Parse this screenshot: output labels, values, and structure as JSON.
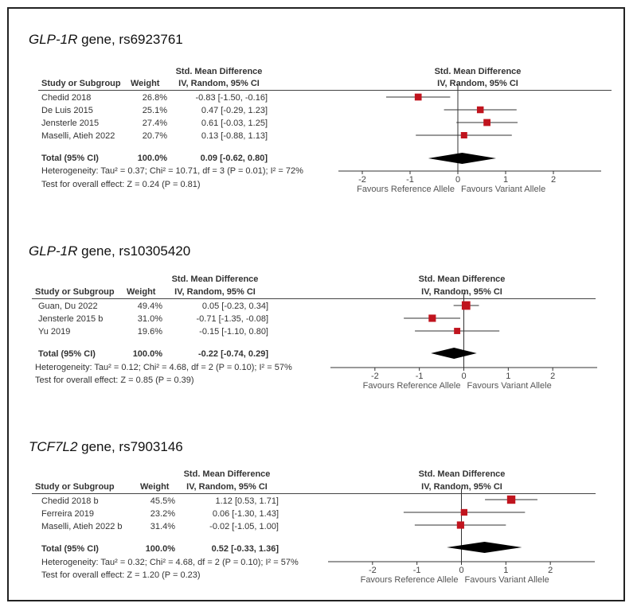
{
  "chart_data": [
    {
      "type": "forest",
      "title_gene": "GLP-1R",
      "title_rest": " gene, rs6923761",
      "header": {
        "group_left": "Std. Mean Difference",
        "group_right": "Std. Mean Difference",
        "study": "Study or Subgroup",
        "weight": "Weight",
        "method_left": "IV, Random, 95% CI",
        "method_right": "IV, Random, 95% CI"
      },
      "studies": [
        {
          "name": "Chedid 2018",
          "weight": "26.8%",
          "ci_text": "-0.83 [-1.50, -0.16]",
          "est": -0.83,
          "lo": -1.5,
          "hi": -0.16,
          "w": 26.8
        },
        {
          "name": "De Luis 2015",
          "weight": "25.1%",
          "ci_text": "0.47 [-0.29, 1.23]",
          "est": 0.47,
          "lo": -0.29,
          "hi": 1.23,
          "w": 25.1
        },
        {
          "name": "Jensterle 2015",
          "weight": "27.4%",
          "ci_text": "0.61 [-0.03, 1.25]",
          "est": 0.61,
          "lo": -0.03,
          "hi": 1.25,
          "w": 27.4
        },
        {
          "name": "Maselli, Atieh 2022",
          "weight": "20.7%",
          "ci_text": "0.13 [-0.88, 1.13]",
          "est": 0.13,
          "lo": -0.88,
          "hi": 1.13,
          "w": 20.7
        }
      ],
      "total": {
        "label": "Total (95% CI)",
        "weight": "100.0%",
        "ci_text": "0.09 [-0.62, 0.80]",
        "est": 0.09,
        "lo": -0.62,
        "hi": 0.8
      },
      "heterogeneity": "Heterogeneity: Tau² = 0.37; Chi² = 10.71, df = 3 (P = 0.01); I² = 72%",
      "overall_effect": "Test for overall effect: Z = 0.24 (P = 0.81)",
      "x_ticks": [
        -2,
        -1,
        0,
        1,
        2
      ],
      "x_tick_labels": [
        "-2",
        "-1",
        "0",
        "1",
        "2"
      ],
      "xlim": [
        -2.5,
        3.0
      ],
      "favours_left": "Favours Reference Allele",
      "favours_right": "Favours Variant Allele",
      "marker_color": "#c0141e"
    },
    {
      "type": "forest",
      "title_gene": "GLP-1R",
      "title_rest": " gene, rs10305420",
      "header": {
        "group_left": "Std. Mean Difference",
        "group_right": "Std. Mean Difference",
        "study": "Study or Subgroup",
        "weight": "Weight",
        "method_left": "IV, Random, 95% CI",
        "method_right": "IV, Random, 95% CI"
      },
      "studies": [
        {
          "name": "Guan, Du 2022",
          "weight": "49.4%",
          "ci_text": "0.05 [-0.23, 0.34]",
          "est": 0.05,
          "lo": -0.23,
          "hi": 0.34,
          "w": 49.4
        },
        {
          "name": "Jensterle 2015 b",
          "weight": "31.0%",
          "ci_text": "-0.71 [-1.35, -0.08]",
          "est": -0.71,
          "lo": -1.35,
          "hi": -0.08,
          "w": 31.0
        },
        {
          "name": "Yu 2019",
          "weight": "19.6%",
          "ci_text": "-0.15 [-1.10, 0.80]",
          "est": -0.15,
          "lo": -1.1,
          "hi": 0.8,
          "w": 19.6
        }
      ],
      "total": {
        "label": "Total (95% CI)",
        "weight": "100.0%",
        "ci_text": "-0.22 [-0.74, 0.29]",
        "est": -0.22,
        "lo": -0.74,
        "hi": 0.29
      },
      "heterogeneity": "Heterogeneity: Tau² = 0.12; Chi² = 4.68, df = 2 (P = 0.10); I² = 57%",
      "overall_effect": "Test for overall effect: Z = 0.85 (P = 0.39)",
      "x_ticks": [
        -2,
        -1,
        0,
        1,
        2
      ],
      "x_tick_labels": [
        "-2",
        "-1",
        "0",
        "1",
        "2"
      ],
      "xlim": [
        -3.0,
        3.0
      ],
      "favours_left": "Favours Reference Allele",
      "favours_right": "Favours Variant Allele",
      "marker_color": "#c0141e"
    },
    {
      "type": "forest",
      "title_gene": "TCF7L2",
      "title_rest": " gene, rs7903146",
      "header": {
        "group_left": "Std. Mean Difference",
        "group_right": "Std. Mean Difference",
        "study": "Study or Subgroup",
        "weight": "Weight",
        "method_left": "IV, Random, 95% CI",
        "method_right": "IV, Random, 95% CI"
      },
      "studies": [
        {
          "name": "Chedid 2018 b",
          "weight": "45.5%",
          "ci_text": "1.12 [0.53, 1.71]",
          "est": 1.12,
          "lo": 0.53,
          "hi": 1.71,
          "w": 45.5
        },
        {
          "name": "Ferreira 2019",
          "weight": "23.2%",
          "ci_text": "0.06 [-1.30, 1.43]",
          "est": 0.06,
          "lo": -1.3,
          "hi": 1.43,
          "w": 23.2
        },
        {
          "name": "Maselli, Atieh 2022 b",
          "weight": "31.4%",
          "ci_text": "-0.02 [-1.05, 1.00]",
          "est": -0.02,
          "lo": -1.05,
          "hi": 1.0,
          "w": 31.4
        }
      ],
      "total": {
        "label": "Total (95% CI)",
        "weight": "100.0%",
        "ci_text": "0.52 [-0.33, 1.36]",
        "est": 0.52,
        "lo": -0.33,
        "hi": 1.36
      },
      "heterogeneity": "Heterogeneity: Tau² = 0.32; Chi² = 4.68, df = 2 (P = 0.10); I² = 57%",
      "overall_effect": "Test for overall effect: Z = 1.20 (P = 0.23)",
      "x_ticks": [
        -2,
        -1,
        0,
        1,
        2
      ],
      "x_tick_labels": [
        "-2",
        "-1",
        "0",
        "1",
        "2"
      ],
      "xlim": [
        -3.0,
        3.0
      ],
      "favours_left": "Favours Reference Allele",
      "favours_right": "Favours Variant Allele",
      "marker_color": "#c0141e"
    }
  ]
}
